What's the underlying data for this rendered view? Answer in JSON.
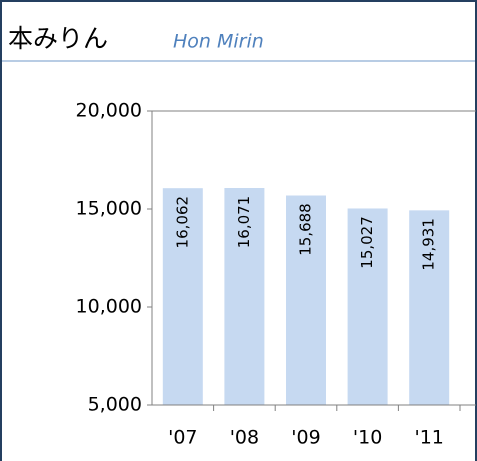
{
  "chart_data": {
    "type": "bar",
    "title": "本みりん",
    "subtitle": "Hon Mirin",
    "categories": [
      "'07",
      "'08",
      "'09",
      "'10",
      "'11"
    ],
    "values": [
      16062,
      16071,
      15688,
      15027,
      14931
    ],
    "value_labels": [
      "16,062",
      "16,071",
      "15,688",
      "15,027",
      "14,931"
    ],
    "color": "#c6d9f1",
    "ylim": [
      5000,
      20000
    ],
    "yticks": [
      {
        "value": 5000,
        "label": "5,000"
      },
      {
        "value": 10000,
        "label": "10,000"
      },
      {
        "value": 15000,
        "label": "15,000"
      },
      {
        "value": 20000,
        "label": "20,000"
      }
    ]
  }
}
